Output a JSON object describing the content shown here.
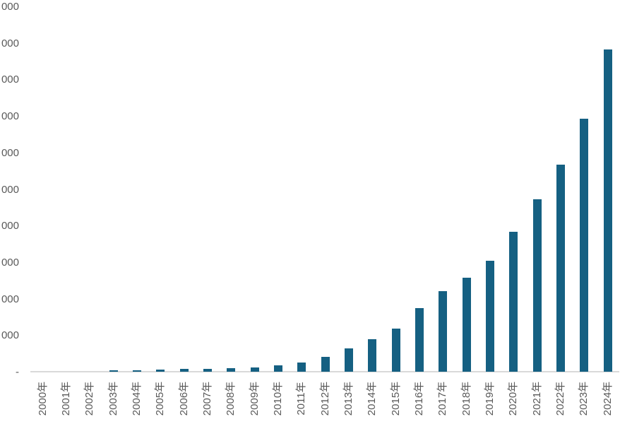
{
  "page": {
    "background_color": "#FFFFFF"
  },
  "chart_data": {
    "type": "bar",
    "title": "",
    "xlabel": "",
    "ylabel": "",
    "categories": [
      "2000年",
      "2001年",
      "2002年",
      "2003年",
      "2004年",
      "2005年",
      "2006年",
      "2007年",
      "2008年",
      "2009年",
      "2010年",
      "2011年",
      "2012年",
      "2013年",
      "2014年",
      "2015年",
      "2016年",
      "2017年",
      "2018年",
      "2019年",
      "2020年",
      "2021年",
      "2022年",
      "2023年",
      "2024年"
    ],
    "values": [
      0,
      0,
      0,
      40,
      40,
      50,
      70,
      70,
      95,
      110,
      165,
      260,
      410,
      640,
      890,
      1180,
      1740,
      2210,
      2570,
      3040,
      3830,
      4720,
      5670,
      6930,
      8820
    ],
    "ylim": [
      0,
      10000
    ],
    "y_tick_step": 1000,
    "y_tick_labels_bottom_to_top": [
      "-",
      "000",
      "000",
      "000",
      "000",
      "000",
      "000",
      "000",
      "000",
      "000",
      "000"
    ],
    "y_tick_labels_clipped_at_left_edge": true,
    "x_tick_rotation_degrees": 90,
    "grid": "off",
    "legend": "none",
    "bar_color": "#156082",
    "axis_line_color": "#D9D9D9",
    "tick_label_color": "#595959"
  }
}
